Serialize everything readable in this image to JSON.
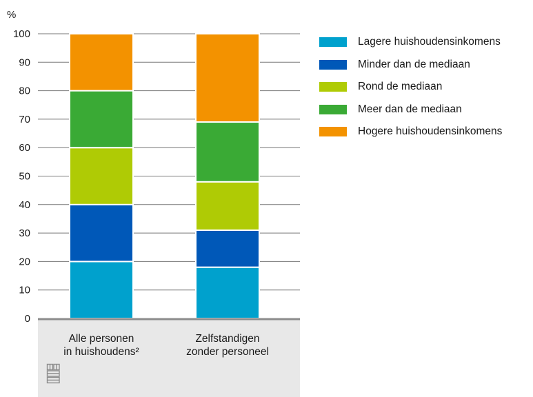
{
  "chart_data": {
    "type": "bar",
    "stacked": true,
    "ylabel": "%",
    "ylim": [
      0,
      100
    ],
    "yticks": [
      0,
      10,
      20,
      30,
      40,
      50,
      60,
      70,
      80,
      90,
      100
    ],
    "grid": true,
    "legend_position": "top-right",
    "categories": [
      [
        "Alle personen",
        "in huishoudens²"
      ],
      [
        "Zelfstandigen",
        "zonder personeel"
      ]
    ],
    "series": [
      {
        "name": "Lagere huishoudensinkomens",
        "color": "#00a1cd",
        "values": [
          20,
          18
        ]
      },
      {
        "name": "Minder dan de mediaan",
        "color": "#0058b8",
        "values": [
          20,
          13
        ]
      },
      {
        "name": "Rond de mediaan",
        "color": "#afcb05",
        "values": [
          20,
          17
        ]
      },
      {
        "name": "Meer dan de mediaan",
        "color": "#3aaa35",
        "values": [
          20,
          21
        ]
      },
      {
        "name": "Hogere huishoudensinkomens",
        "color": "#f39200",
        "values": [
          20,
          31
        ]
      }
    ]
  },
  "logo": {
    "name": "cbs-logo",
    "text": "cbs"
  }
}
